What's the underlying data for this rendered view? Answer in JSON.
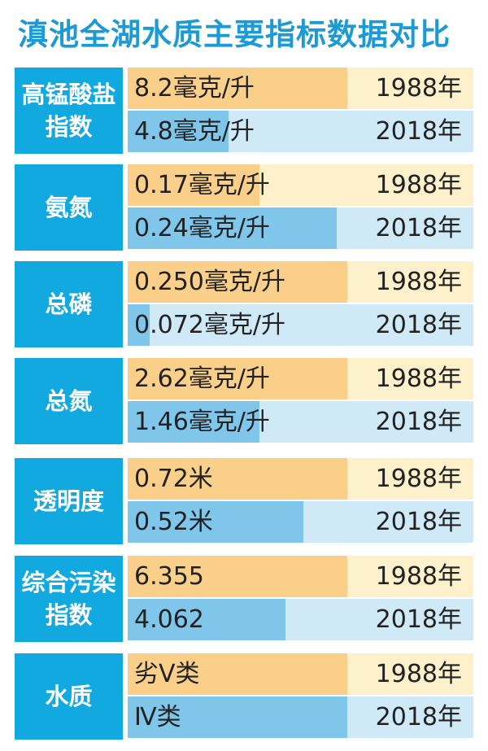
{
  "title": "滇池全湖水质主要指标数据对比",
  "colors": {
    "title": "#1b9ad6",
    "label_bg": "#12a8e0",
    "bar_1988": "#f9cf8a",
    "track_1988": "#fdf1cb",
    "bar_2018": "#7fc6ea",
    "track_2018": "#cfe9f6"
  },
  "chart_data": {
    "type": "bar",
    "title": "滇池全湖水质主要指标数据对比",
    "years": [
      "1988年",
      "2018年"
    ],
    "indicators": [
      {
        "label_lines": [
          "高锰酸盐",
          "指数"
        ],
        "rows": [
          {
            "year": "1988年",
            "text": "8.2毫克/升",
            "value": 8.2,
            "bar_fraction": 1.0
          },
          {
            "year": "2018年",
            "text": "4.8毫克/升",
            "value": 4.8,
            "bar_fraction": 0.46
          }
        ]
      },
      {
        "label_lines": [
          "氨氮"
        ],
        "rows": [
          {
            "year": "1988年",
            "text": "0.17毫克/升",
            "value": 0.17,
            "bar_fraction": 0.6
          },
          {
            "year": "2018年",
            "text": "0.24毫克/升",
            "value": 0.24,
            "bar_fraction": 0.95
          }
        ]
      },
      {
        "label_lines": [
          "总磷"
        ],
        "rows": [
          {
            "year": "1988年",
            "text": "0.250毫克/升",
            "value": 0.25,
            "bar_fraction": 1.0
          },
          {
            "year": "2018年",
            "text": "0.072毫克/升",
            "value": 0.072,
            "bar_fraction": 0.1
          }
        ]
      },
      {
        "label_lines": [
          "总氮"
        ],
        "rows": [
          {
            "year": "1988年",
            "text": "2.62毫克/升",
            "value": 2.62,
            "bar_fraction": 1.0
          },
          {
            "year": "2018年",
            "text": "1.46毫克/升",
            "value": 1.46,
            "bar_fraction": 0.6
          }
        ]
      },
      {
        "label_lines": [
          "透明度"
        ],
        "rows": [
          {
            "year": "1988年",
            "text": "0.72米",
            "value": 0.72,
            "bar_fraction": 1.0
          },
          {
            "year": "2018年",
            "text": "0.52米",
            "value": 0.52,
            "bar_fraction": 0.8
          }
        ]
      },
      {
        "label_lines": [
          "综合污染",
          "指数"
        ],
        "rows": [
          {
            "year": "1988年",
            "text": "6.355",
            "value": 6.355,
            "bar_fraction": 1.0
          },
          {
            "year": "2018年",
            "text": "4.062",
            "value": 4.062,
            "bar_fraction": 0.72
          }
        ]
      },
      {
        "label_lines": [
          "水质"
        ],
        "rows": [
          {
            "year": "1988年",
            "text": "劣Ⅴ类",
            "bar_fraction": 1.0
          },
          {
            "year": "2018年",
            "text": "Ⅳ类",
            "bar_fraction": 1.0
          }
        ]
      }
    ]
  }
}
